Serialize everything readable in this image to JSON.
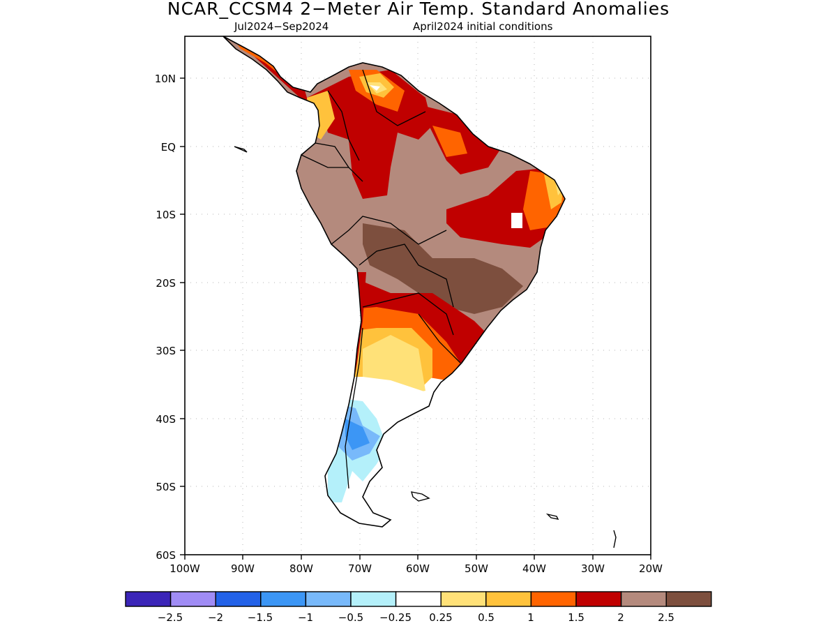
{
  "title": "NCAR_CCSM4 2−Meter Air Temp. Standard Anomalies",
  "subtitle_left": "Jul2024−Sep2024",
  "subtitle_right": "April2024 initial conditions",
  "lat_ticks": [
    "10N",
    "EQ",
    "10S",
    "20S",
    "30S",
    "40S",
    "50S",
    "60S"
  ],
  "lon_ticks": [
    "100W",
    "90W",
    "80W",
    "70W",
    "60W",
    "50W",
    "40W",
    "30W",
    "20W"
  ],
  "colorbar": {
    "colors": [
      "#3b25b8",
      "#a08cf5",
      "#2362e8",
      "#3c96f5",
      "#78b9fa",
      "#b4f0fa",
      "#ffffff",
      "#ffe178",
      "#ffc23c",
      "#ff6400",
      "#c00000",
      "#b48a7d",
      "#7d4f3e"
    ],
    "labels": [
      "−2.5",
      "−2",
      "−1.5",
      "−1",
      "−0.5",
      "−0.25",
      "0.25",
      "0.5",
      "1",
      "1.5",
      "2",
      "2.5"
    ]
  }
}
